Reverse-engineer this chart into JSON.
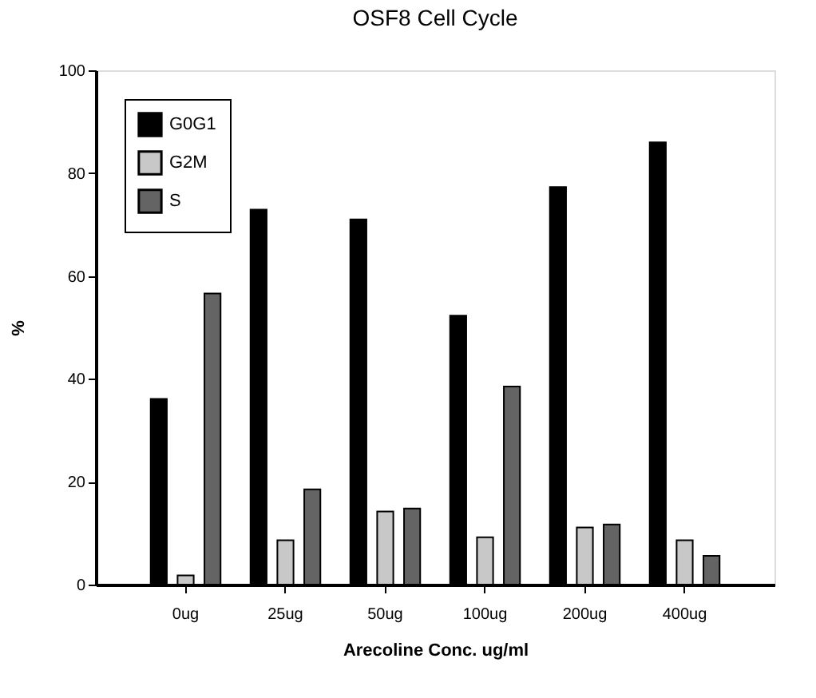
{
  "chart_data": {
    "type": "bar",
    "title": "OSF8 Cell Cycle",
    "xlabel": "Arecoline Conc. ug/ml",
    "ylabel": "%",
    "categories": [
      "0ug",
      "25ug",
      "50ug",
      "100ug",
      "200ug",
      "400ug"
    ],
    "series": [
      {
        "name": "G0G1",
        "color": "#000000",
        "values": [
          36.1,
          72.9,
          71.0,
          52.3,
          77.3,
          86.0
        ]
      },
      {
        "name": "G2M",
        "color": "#c8c8c8",
        "values": [
          1.8,
          8.6,
          14.2,
          9.2,
          11.1,
          8.6
        ]
      },
      {
        "name": "S",
        "color": "#646464",
        "values": [
          56.6,
          18.5,
          14.8,
          38.5,
          11.7,
          5.6
        ]
      }
    ],
    "ylim": [
      0,
      100
    ],
    "yticks": [
      0,
      20,
      40,
      60,
      80,
      100
    ],
    "grid": false,
    "legend": "top left"
  }
}
